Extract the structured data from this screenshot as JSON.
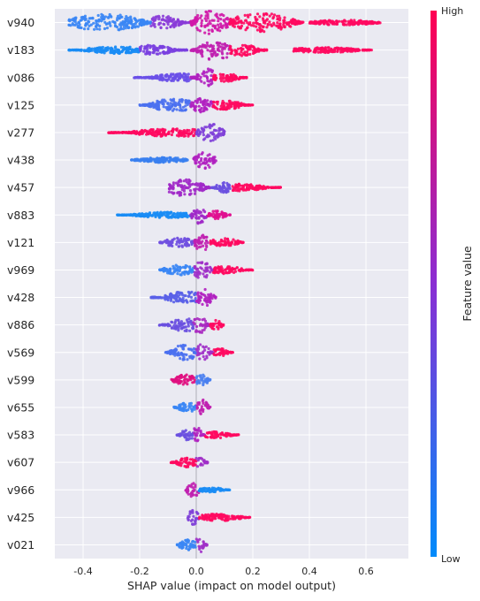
{
  "chart_data": {
    "type": "scatter",
    "subtype": "shap-beeswarm-summary",
    "title": "",
    "xlabel": "SHAP value (impact on model output)",
    "ylabel": "",
    "xlim": [
      -0.5,
      0.75
    ],
    "x_ticks": [
      "-0.4",
      "-0.2",
      "0.0",
      "0.2",
      "0.4",
      "0.6"
    ],
    "grid": true,
    "colorbar": {
      "label": "Feature value",
      "high_label": "High",
      "low_label": "Low",
      "low_color": "#008bfb",
      "high_color": "#ff0052"
    },
    "features": [
      {
        "name": "v940",
        "min": -0.45,
        "max": 0.65,
        "segments": [
          {
            "x0": -0.45,
            "x1": -0.16,
            "h": 0.75,
            "color": "#3a86f5",
            "peak": -0.32
          },
          {
            "x0": -0.16,
            "x1": -0.02,
            "h": 0.6,
            "color": "#8a3cd8",
            "peak": -0.12
          },
          {
            "x0": -0.02,
            "x1": 0.12,
            "h": 1.0,
            "color": "#d018a8",
            "peak": 0.05
          },
          {
            "x0": 0.12,
            "x1": 0.38,
            "h": 0.8,
            "color": "#ff0a60",
            "peak": 0.23
          },
          {
            "x0": 0.4,
            "x1": 0.65,
            "h": 0.22,
            "color": "#ff0a60",
            "peak": 0.52
          }
        ]
      },
      {
        "name": "v183",
        "min": -0.45,
        "max": 0.62,
        "segments": [
          {
            "x0": -0.45,
            "x1": -0.2,
            "h": 0.3,
            "color": "#1a8cf5",
            "peak": -0.28
          },
          {
            "x0": -0.2,
            "x1": -0.03,
            "h": 0.45,
            "color": "#7a40e0",
            "peak": -0.16
          },
          {
            "x0": -0.02,
            "x1": 0.12,
            "h": 0.9,
            "color": "#c020b0",
            "peak": 0.07
          },
          {
            "x0": 0.12,
            "x1": 0.25,
            "h": 0.5,
            "color": "#ff0a60",
            "peak": 0.16
          },
          {
            "x0": 0.34,
            "x1": 0.62,
            "h": 0.22,
            "color": "#ff0a60",
            "peak": 0.45
          }
        ]
      },
      {
        "name": "v086",
        "min": -0.22,
        "max": 0.18,
        "segments": [
          {
            "x0": -0.22,
            "x1": -0.02,
            "h": 0.35,
            "color": "#6a50e8",
            "peak": -0.06
          },
          {
            "x0": -0.02,
            "x1": 0.06,
            "h": 0.75,
            "color": "#b020c0",
            "peak": 0.04
          },
          {
            "x0": 0.06,
            "x1": 0.18,
            "h": 0.35,
            "color": "#ff0a60",
            "peak": 0.1
          }
        ]
      },
      {
        "name": "v125",
        "min": -0.2,
        "max": 0.2,
        "segments": [
          {
            "x0": -0.2,
            "x1": -0.02,
            "h": 0.55,
            "color": "#4a70f0",
            "peak": -0.08
          },
          {
            "x0": -0.02,
            "x1": 0.06,
            "h": 0.7,
            "color": "#b020c0",
            "peak": 0.02
          },
          {
            "x0": 0.06,
            "x1": 0.2,
            "h": 0.38,
            "color": "#ff0a60",
            "peak": 0.1
          }
        ]
      },
      {
        "name": "v277",
        "min": -0.31,
        "max": 0.1,
        "segments": [
          {
            "x0": -0.31,
            "x1": 0.0,
            "h": 0.35,
            "color": "#ff0a60",
            "peak": -0.08
          },
          {
            "x0": 0.0,
            "x1": 0.1,
            "h": 0.75,
            "color": "#8040d8",
            "peak": 0.05
          }
        ]
      },
      {
        "name": "v438",
        "min": -0.23,
        "max": 0.07,
        "segments": [
          {
            "x0": -0.23,
            "x1": -0.03,
            "h": 0.22,
            "color": "#3a80f0",
            "peak": -0.12
          },
          {
            "x0": -0.01,
            "x1": 0.07,
            "h": 0.75,
            "color": "#b020c0",
            "peak": 0.03
          }
        ]
      },
      {
        "name": "v457",
        "min": -0.1,
        "max": 0.3,
        "segments": [
          {
            "x0": -0.1,
            "x1": 0.05,
            "h": 0.75,
            "color": "#a028c8",
            "peak": -0.04
          },
          {
            "x0": 0.05,
            "x1": 0.12,
            "h": 0.45,
            "color": "#6a50e0",
            "peak": 0.1
          },
          {
            "x0": 0.12,
            "x1": 0.3,
            "h": 0.3,
            "color": "#ff0a60",
            "peak": 0.16
          }
        ]
      },
      {
        "name": "v883",
        "min": -0.28,
        "max": 0.12,
        "segments": [
          {
            "x0": -0.28,
            "x1": -0.02,
            "h": 0.25,
            "color": "#1a8cf5",
            "peak": -0.1
          },
          {
            "x0": -0.02,
            "x1": 0.04,
            "h": 0.75,
            "color": "#a028c8",
            "peak": 0.01
          },
          {
            "x0": 0.04,
            "x1": 0.12,
            "h": 0.35,
            "color": "#e01090",
            "peak": 0.07
          }
        ]
      },
      {
        "name": "v121",
        "min": -0.13,
        "max": 0.17,
        "segments": [
          {
            "x0": -0.13,
            "x1": -0.01,
            "h": 0.4,
            "color": "#7050e0",
            "peak": -0.06
          },
          {
            "x0": -0.01,
            "x1": 0.05,
            "h": 0.75,
            "color": "#c020b0",
            "peak": 0.02
          },
          {
            "x0": 0.05,
            "x1": 0.17,
            "h": 0.35,
            "color": "#ff0a60",
            "peak": 0.1
          }
        ]
      },
      {
        "name": "v969",
        "min": -0.13,
        "max": 0.2,
        "segments": [
          {
            "x0": -0.13,
            "x1": -0.01,
            "h": 0.45,
            "color": "#3a86f5",
            "peak": -0.06
          },
          {
            "x0": -0.01,
            "x1": 0.06,
            "h": 0.75,
            "color": "#a030c8",
            "peak": 0.02
          },
          {
            "x0": 0.06,
            "x1": 0.2,
            "h": 0.32,
            "color": "#ff0a60",
            "peak": 0.1
          }
        ]
      },
      {
        "name": "v428",
        "min": -0.16,
        "max": 0.07,
        "segments": [
          {
            "x0": -0.16,
            "x1": 0.0,
            "h": 0.5,
            "color": "#5a60e8",
            "peak": -0.04
          },
          {
            "x0": 0.0,
            "x1": 0.07,
            "h": 0.75,
            "color": "#b020c0",
            "peak": 0.03
          }
        ]
      },
      {
        "name": "v886",
        "min": -0.13,
        "max": 0.1,
        "segments": [
          {
            "x0": -0.13,
            "x1": -0.01,
            "h": 0.55,
            "color": "#6a50e0",
            "peak": -0.04
          },
          {
            "x0": -0.01,
            "x1": 0.05,
            "h": 0.75,
            "color": "#a828c0",
            "peak": 0.01
          },
          {
            "x0": 0.05,
            "x1": 0.1,
            "h": 0.4,
            "color": "#ff0a60",
            "peak": 0.07
          }
        ]
      },
      {
        "name": "v569",
        "min": -0.11,
        "max": 0.13,
        "segments": [
          {
            "x0": -0.11,
            "x1": 0.0,
            "h": 0.65,
            "color": "#4a70f0",
            "peak": -0.04
          },
          {
            "x0": 0.0,
            "x1": 0.06,
            "h": 0.75,
            "color": "#a030c8",
            "peak": 0.02
          },
          {
            "x0": 0.06,
            "x1": 0.13,
            "h": 0.35,
            "color": "#ff0a60",
            "peak": 0.08
          }
        ]
      },
      {
        "name": "v599",
        "min": -0.09,
        "max": 0.05,
        "segments": [
          {
            "x0": -0.09,
            "x1": 0.0,
            "h": 0.45,
            "color": "#e01080",
            "peak": -0.04
          },
          {
            "x0": 0.0,
            "x1": 0.05,
            "h": 0.55,
            "color": "#4a80f0",
            "peak": 0.02
          }
        ]
      },
      {
        "name": "v655",
        "min": -0.08,
        "max": 0.05,
        "segments": [
          {
            "x0": -0.08,
            "x1": 0.0,
            "h": 0.4,
            "color": "#3a86f5",
            "peak": -0.03
          },
          {
            "x0": 0.0,
            "x1": 0.05,
            "h": 0.7,
            "color": "#c020b0",
            "peak": 0.02
          }
        ]
      },
      {
        "name": "v583",
        "min": -0.07,
        "max": 0.15,
        "segments": [
          {
            "x0": -0.07,
            "x1": -0.01,
            "h": 0.45,
            "color": "#6a50e0",
            "peak": -0.03
          },
          {
            "x0": -0.01,
            "x1": 0.03,
            "h": 0.75,
            "color": "#b020c0",
            "peak": 0.0
          },
          {
            "x0": 0.03,
            "x1": 0.15,
            "h": 0.28,
            "color": "#ff0a60",
            "peak": 0.07
          }
        ]
      },
      {
        "name": "v607",
        "min": -0.09,
        "max": 0.04,
        "segments": [
          {
            "x0": -0.09,
            "x1": 0.0,
            "h": 0.4,
            "color": "#ff0a60",
            "peak": -0.03
          },
          {
            "x0": 0.0,
            "x1": 0.04,
            "h": 0.65,
            "color": "#a030c8",
            "peak": 0.01
          }
        ]
      },
      {
        "name": "v966",
        "min": -0.04,
        "max": 0.12,
        "segments": [
          {
            "x0": -0.04,
            "x1": 0.01,
            "h": 0.65,
            "color": "#c020b0",
            "peak": -0.01
          },
          {
            "x0": 0.01,
            "x1": 0.12,
            "h": 0.2,
            "color": "#1a8cf5",
            "peak": 0.05
          }
        ]
      },
      {
        "name": "v425",
        "min": -0.03,
        "max": 0.19,
        "segments": [
          {
            "x0": -0.03,
            "x1": 0.01,
            "h": 0.7,
            "color": "#8040d8",
            "peak": -0.01
          },
          {
            "x0": 0.01,
            "x1": 0.19,
            "h": 0.3,
            "color": "#ff0a60",
            "peak": 0.08
          }
        ]
      },
      {
        "name": "v021",
        "min": -0.07,
        "max": 0.04,
        "segments": [
          {
            "x0": -0.07,
            "x1": 0.0,
            "h": 0.45,
            "color": "#3a86f5",
            "peak": -0.03
          },
          {
            "x0": 0.0,
            "x1": 0.04,
            "h": 0.7,
            "color": "#a030c8",
            "peak": 0.01
          }
        ]
      }
    ]
  }
}
